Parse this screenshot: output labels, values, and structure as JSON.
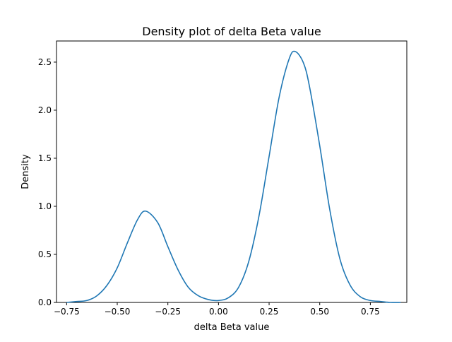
{
  "chart_data": {
    "type": "line",
    "title": "Density plot of delta Beta value",
    "xlabel": "delta Beta value",
    "ylabel": "Density",
    "xlim": [
      -0.8,
      0.93
    ],
    "ylim": [
      0,
      2.72
    ],
    "xticks": [
      -0.75,
      -0.5,
      -0.25,
      0.0,
      0.25,
      0.5,
      0.75
    ],
    "xtick_labels": [
      "−0.75",
      "−0.50",
      "−0.25",
      "0.00",
      "0.25",
      "0.50",
      "0.75"
    ],
    "yticks": [
      0.0,
      0.5,
      1.0,
      1.5,
      2.0,
      2.5
    ],
    "ytick_labels": [
      "0.0",
      "0.5",
      "1.0",
      "1.5",
      "2.0",
      "2.5"
    ],
    "grid": false,
    "legend": false,
    "colors": {
      "line": "#1f77b4"
    },
    "series": [
      {
        "x": [
          -0.75,
          -0.7,
          -0.65,
          -0.6,
          -0.55,
          -0.5,
          -0.45,
          -0.4,
          -0.36,
          -0.3,
          -0.25,
          -0.2,
          -0.15,
          -0.1,
          -0.05,
          0.0,
          0.05,
          0.1,
          0.15,
          0.2,
          0.25,
          0.3,
          0.35,
          0.38,
          0.42,
          0.45,
          0.5,
          0.55,
          0.6,
          0.65,
          0.7,
          0.75,
          0.8,
          0.85,
          0.9
        ],
        "y": [
          0.0,
          0.01,
          0.02,
          0.07,
          0.18,
          0.36,
          0.62,
          0.86,
          0.95,
          0.83,
          0.58,
          0.34,
          0.16,
          0.07,
          0.03,
          0.02,
          0.05,
          0.16,
          0.43,
          0.9,
          1.52,
          2.14,
          2.54,
          2.61,
          2.49,
          2.24,
          1.63,
          0.96,
          0.45,
          0.18,
          0.06,
          0.02,
          0.01,
          0.0,
          0.0
        ]
      }
    ]
  }
}
